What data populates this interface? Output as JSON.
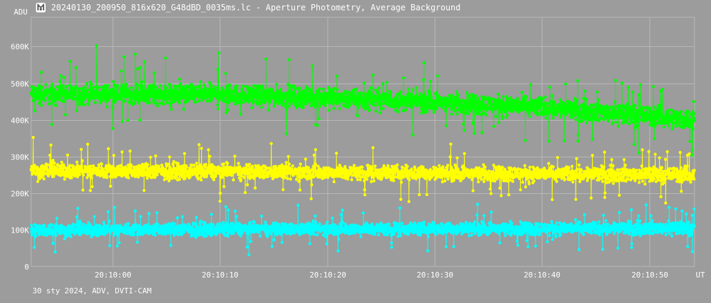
{
  "window": {
    "title": "20240130_200950_816x620_G48dBD_0035ms.lc - Aperture Photometry, Average Background",
    "icon": "app-logo-icon"
  },
  "footer": {
    "text": "30 sty 2024, ADV, DVTI-CAM"
  },
  "chart_data": {
    "type": "scatter",
    "ylabel": "ADU",
    "xlabel": "UT",
    "y_ticks": [
      "0",
      "100K",
      "200K",
      "300K",
      "400K",
      "500K",
      "600K"
    ],
    "ylim": [
      0,
      680000
    ],
    "x_ticks": [
      "20:10:00",
      "20:10:10",
      "20:10:20",
      "20:10:30",
      "20:10:40",
      "20:10:50"
    ],
    "x_tick_seconds": [
      600,
      610,
      620,
      630,
      640,
      650
    ],
    "xlim_seconds": [
      592.4,
      654.2
    ],
    "grid": true,
    "background": "#9c9c9c",
    "grid_color": "#b8b8b8",
    "series": [
      {
        "color": "#00ff00",
        "points_per_second": 40,
        "trend": [
          [
            592.4,
            470000
          ],
          [
            610,
            470000
          ],
          [
            625,
            455000
          ],
          [
            640,
            435000
          ],
          [
            654.2,
            400000
          ]
        ],
        "spread": 40000,
        "outliers": [
          [
            598.5,
            602000
          ],
          [
            609.9,
            583000
          ],
          [
            654.0,
            318000
          ]
        ]
      },
      {
        "color": "#ffff00",
        "points_per_second": 40,
        "trend": [
          [
            592.4,
            262000
          ],
          [
            654.2,
            250000
          ]
        ],
        "spread": 30000,
        "outliers": [
          [
            592.6,
            352000
          ],
          [
            610.0,
            178000
          ],
          [
            627.6,
            177000
          ]
        ]
      },
      {
        "color": "#00ffff",
        "points_per_second": 40,
        "trend": [
          [
            592.4,
            100000
          ],
          [
            654.2,
            105000
          ]
        ],
        "spread": 25000,
        "outliers": [
          [
            592.7,
            52000
          ],
          [
            612.7,
            32000
          ],
          [
            649.7,
            168000
          ]
        ]
      }
    ]
  }
}
